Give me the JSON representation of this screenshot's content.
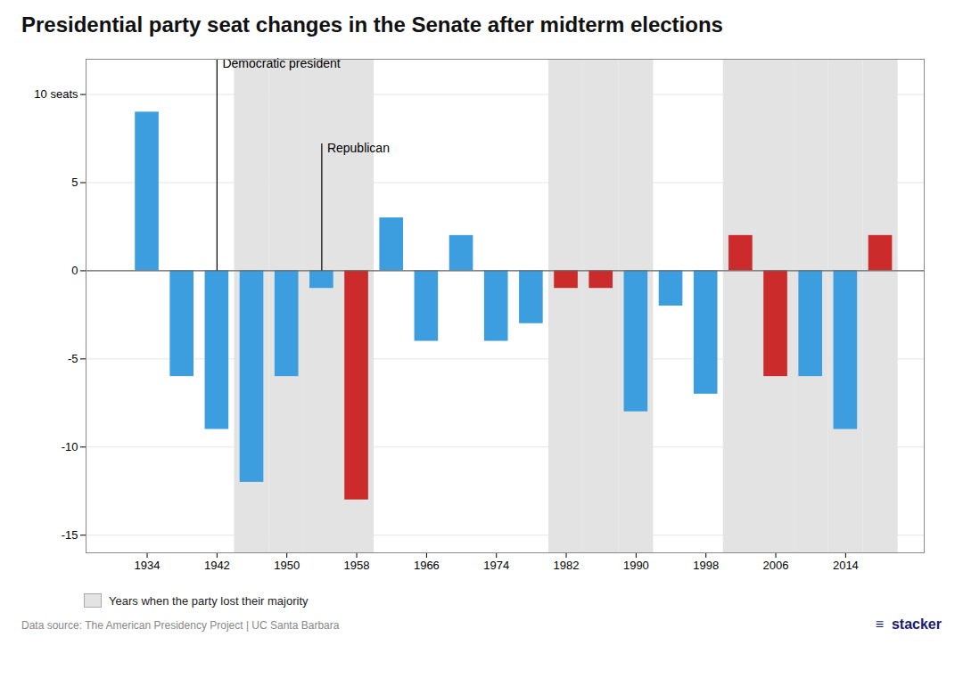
{
  "chart_data": {
    "type": "bar",
    "title": "Presidential party seat changes in the Senate after midterm elections",
    "x": [
      1934,
      1938,
      1942,
      1946,
      1950,
      1954,
      1958,
      1962,
      1966,
      1970,
      1974,
      1978,
      1982,
      1986,
      1990,
      1994,
      1998,
      2002,
      2006,
      2010,
      2014,
      2018
    ],
    "values": [
      9,
      -6,
      -9,
      -12,
      -6,
      -1,
      -13,
      3,
      -4,
      2,
      -4,
      -3,
      -1,
      -1,
      -8,
      -2,
      -7,
      2,
      -6,
      -6,
      -9,
      2
    ],
    "colors": [
      "#3c9edf",
      "#3c9edf",
      "#3c9edf",
      "#3c9edf",
      "#3c9edf",
      "#3c9edf",
      "#cc2b2b",
      "#3c9edf",
      "#3c9edf",
      "#3c9edf",
      "#3c9edf",
      "#3c9edf",
      "#cc2b2b",
      "#cc2b2b",
      "#3c9edf",
      "#3c9edf",
      "#3c9edf",
      "#cc2b2b",
      "#cc2b2b",
      "#3c9edf",
      "#3c9edf",
      "#cc2b2b"
    ],
    "xlim": [
      1927,
      2023
    ],
    "xticks": [
      1934,
      1942,
      1950,
      1958,
      1966,
      1974,
      1982,
      1990,
      1998,
      2006,
      2014
    ],
    "ylim": [
      -16,
      12
    ],
    "yticks": [
      -15,
      -10,
      -5,
      0,
      5,
      {
        "value": 10,
        "label": "10 seats"
      }
    ],
    "grid": true,
    "shaded": {
      "label": "Years when the party lost their majority",
      "color": "#e3e3e3",
      "x": [
        1946,
        1950,
        1954,
        1958,
        1982,
        1986,
        1990,
        2002,
        2006,
        2010,
        2014,
        2018
      ]
    },
    "annotations": [
      {
        "text": "Democratic president",
        "x": 1942
      },
      {
        "text": "Republican",
        "x": 1954
      }
    ],
    "source": "Data source: The American Presidency Project | UC Santa Barbara",
    "credit": "≡  stacker"
  }
}
